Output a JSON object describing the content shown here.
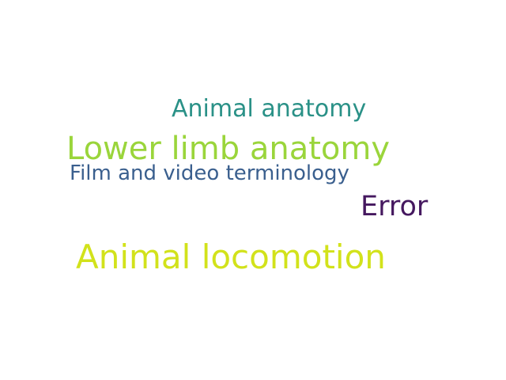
{
  "words": [
    {
      "text": "Animal anatomy",
      "color": "#2a9187"
    },
    {
      "text": "Lower limb anatomy",
      "color": "#9ad53b"
    },
    {
      "text": "Film and video terminology",
      "color": "#3a5f8e"
    },
    {
      "text": "Error",
      "color": "#45185f"
    },
    {
      "text": "Animal locomotion",
      "color": "#d2e21b"
    }
  ],
  "background_color": "#ffffff"
}
